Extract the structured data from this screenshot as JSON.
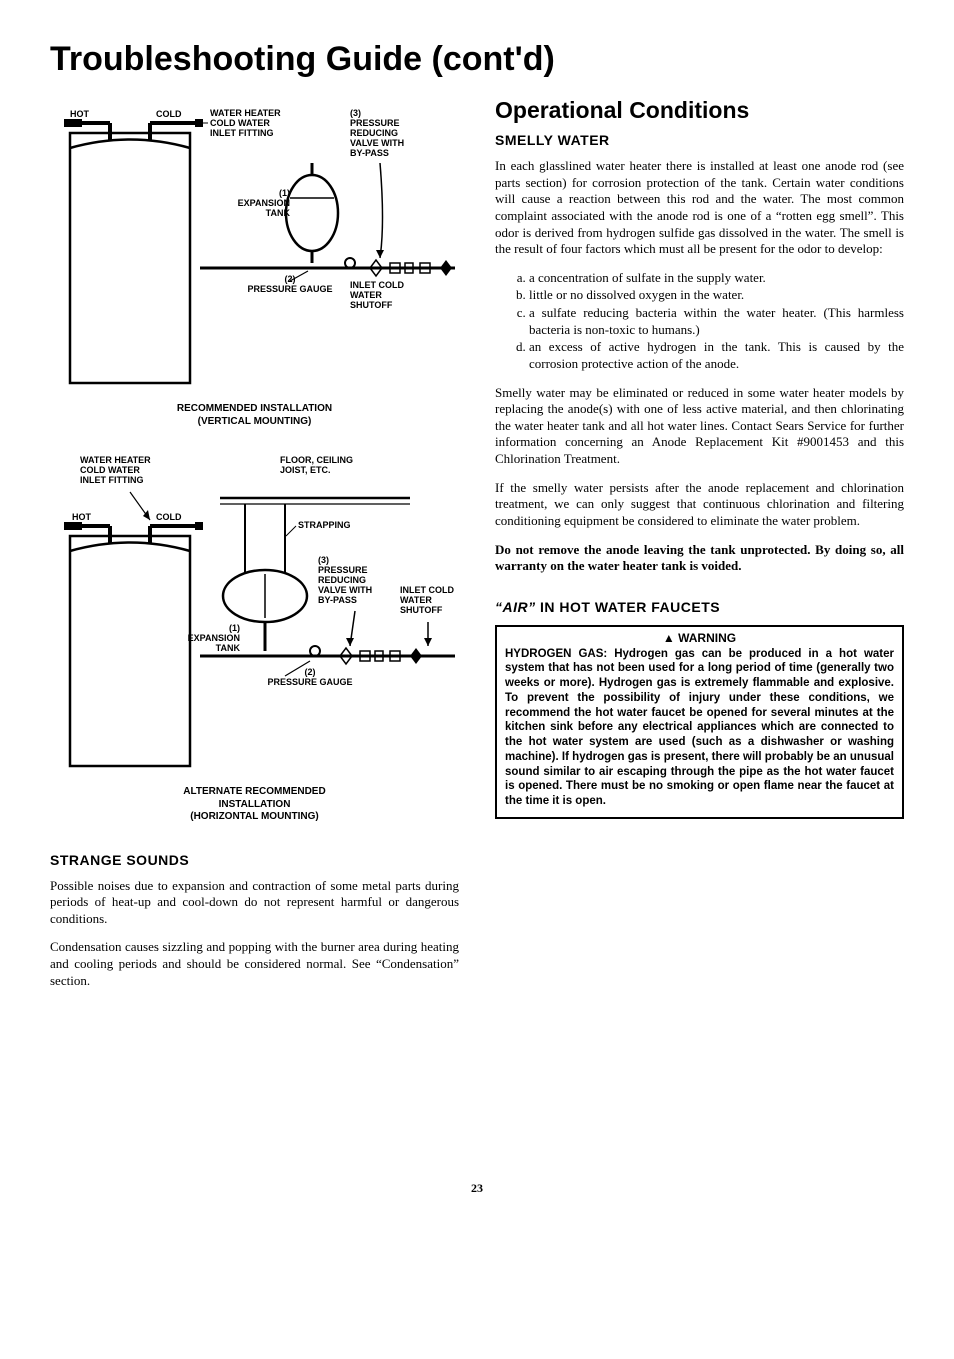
{
  "page_title": "Troubleshooting Guide (cont'd)",
  "page_number": "23",
  "diagram1": {
    "labels": {
      "hot": "HOT",
      "cold": "COLD",
      "heater_inlet": "WATER HEATER\nCOLD WATER\nINLET FITTING",
      "prv": "(3)\nPRESSURE\nREDUCING\nVALVE WITH\nBY-PASS",
      "exp_tank": "(1)\nEXPANSION\nTANK",
      "gauge": "(2)\nPRESSURE GAUGE",
      "shutoff": "INLET COLD\nWATER\nSHUTOFF"
    },
    "caption": "RECOMMENDED INSTALLATION\n(VERTICAL MOUNTING)"
  },
  "diagram2": {
    "labels": {
      "hot": "HOT",
      "cold": "COLD",
      "heater_inlet": "WATER HEATER\nCOLD WATER\nINLET FITTING",
      "joist": "FLOOR, CEILING\nJOIST, ETC.",
      "strapping": "STRAPPING",
      "prv": "(3)\nPRESSURE\nREDUCING\nVALVE WITH\nBY-PASS",
      "exp_tank": "(1)\nEXPANSION\nTANK",
      "gauge": "(2)\nPRESSURE GAUGE",
      "shutoff": "INLET COLD\nWATER\nSHUTOFF"
    },
    "caption": "ALTERNATE RECOMMENDED\nINSTALLATION\n(HORIZONTAL MOUNTING)"
  },
  "strange_sounds": {
    "heading": "STRANGE SOUNDS",
    "p1": "Possible noises due to expansion and contraction of some metal parts during periods of heat-up and cool-down do not represent harmful or dangerous conditions.",
    "p2": "Condensation causes sizzling and popping with the burner area during heating and cooling periods and should be considered normal. See “Condensation” section."
  },
  "operational": {
    "heading": "Operational Conditions"
  },
  "smelly": {
    "heading": "SMELLY WATER",
    "p1": "In each glasslined water heater there is installed at least one anode rod (see parts section) for corrosion protection of the tank. Certain water conditions will cause a reaction between this rod and the water. The most common complaint associated with the anode rod is one of a “rotten egg smell”. This odor is derived from hydrogen sulfide gas dissolved in the water. The smell is the result of four factors which must all be present for the odor to develop:",
    "a": "a concentration of sulfate in the supply water.",
    "b": "little or no dissolved oxygen in the water.",
    "c": "a sulfate reducing bacteria within the water heater. (This harmless bacteria is non-toxic to humans.)",
    "d": "an excess of active hydrogen in the tank. This is caused by the corrosion protective action of the anode.",
    "p2": "Smelly water may be eliminated or reduced in some water heater models by replacing the anode(s) with one of less active material, and then chlorinating the water heater tank and all hot water lines. Contact Sears Service for further information concerning an Anode Replacement Kit #9001453 and this Chlorination Treatment.",
    "p3": "If the smelly water persists after the anode replacement and chlorination treatment, we can only suggest that continuous chlorination and filtering conditioning equipment be considered to eliminate the water problem.",
    "p4": "Do not remove the anode leaving the tank unprotected. By doing so, all warranty on the water heater tank is voided."
  },
  "air": {
    "heading_italic": "“AIR”",
    "heading_rest": " IN HOT WATER FAUCETS"
  },
  "warning": {
    "title": "▲ WARNING",
    "body": "HYDROGEN GAS: Hydrogen gas can be produced in a hot water system that has not been used for a long period of time (generally two weeks or more). Hydrogen gas is extremely flammable and explosive. To prevent the possibility of injury under these conditions, we recommend the hot water faucet be opened for several minutes at the kitchen sink before any electrical appliances which are connected to the hot water system are used (such as a dishwasher or washing machine). If hydrogen gas is present, there will probably be an unusual sound similar to air escaping through the pipe as the hot water faucet is opened. There must be no smoking or open flame near the faucet at the time it is open."
  }
}
